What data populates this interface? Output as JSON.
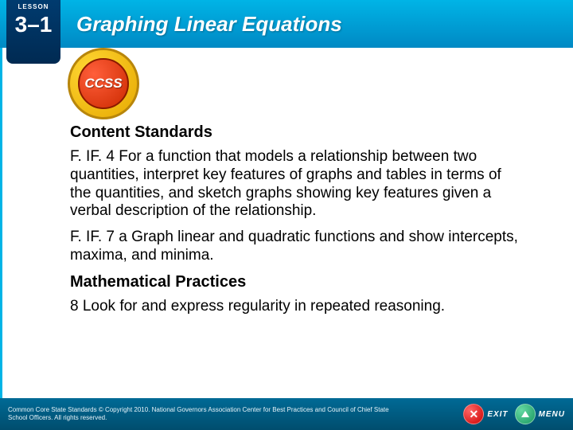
{
  "header": {
    "lesson_label": "LESSON",
    "lesson_number": "3–1",
    "title": "Graphing Linear Equations"
  },
  "badge": {
    "text": "CCSS"
  },
  "content": {
    "section1_title": "Content Standards",
    "standard1": "F. IF. 4 For a function that models a relationship between two quantities, interpret key features of graphs and tables in terms of the quantities, and sketch graphs showing key features given a verbal description of the relationship.",
    "standard2": "F. IF. 7 a Graph linear and quadratic functions and show intercepts, maxima, and minima.",
    "section2_title": "Mathematical Practices",
    "practice1": "8 Look for and express regularity in repeated reasoning."
  },
  "footer": {
    "copyright": "Common Core State Standards © Copyright 2010. National Governors Association Center for Best Practices and Council of Chief State School Officers. All rights reserved.",
    "exit_label": "EXIT",
    "menu_label": "MENU"
  },
  "colors": {
    "header_gradient_top": "#00b4e6",
    "header_gradient_bottom": "#0089c4",
    "lesson_tab": "#003b6f",
    "footer_gradient_top": "#006a96",
    "footer_gradient_bottom": "#004d6e",
    "badge_outer": "#ffd633",
    "badge_inner": "#ff5e3a"
  }
}
